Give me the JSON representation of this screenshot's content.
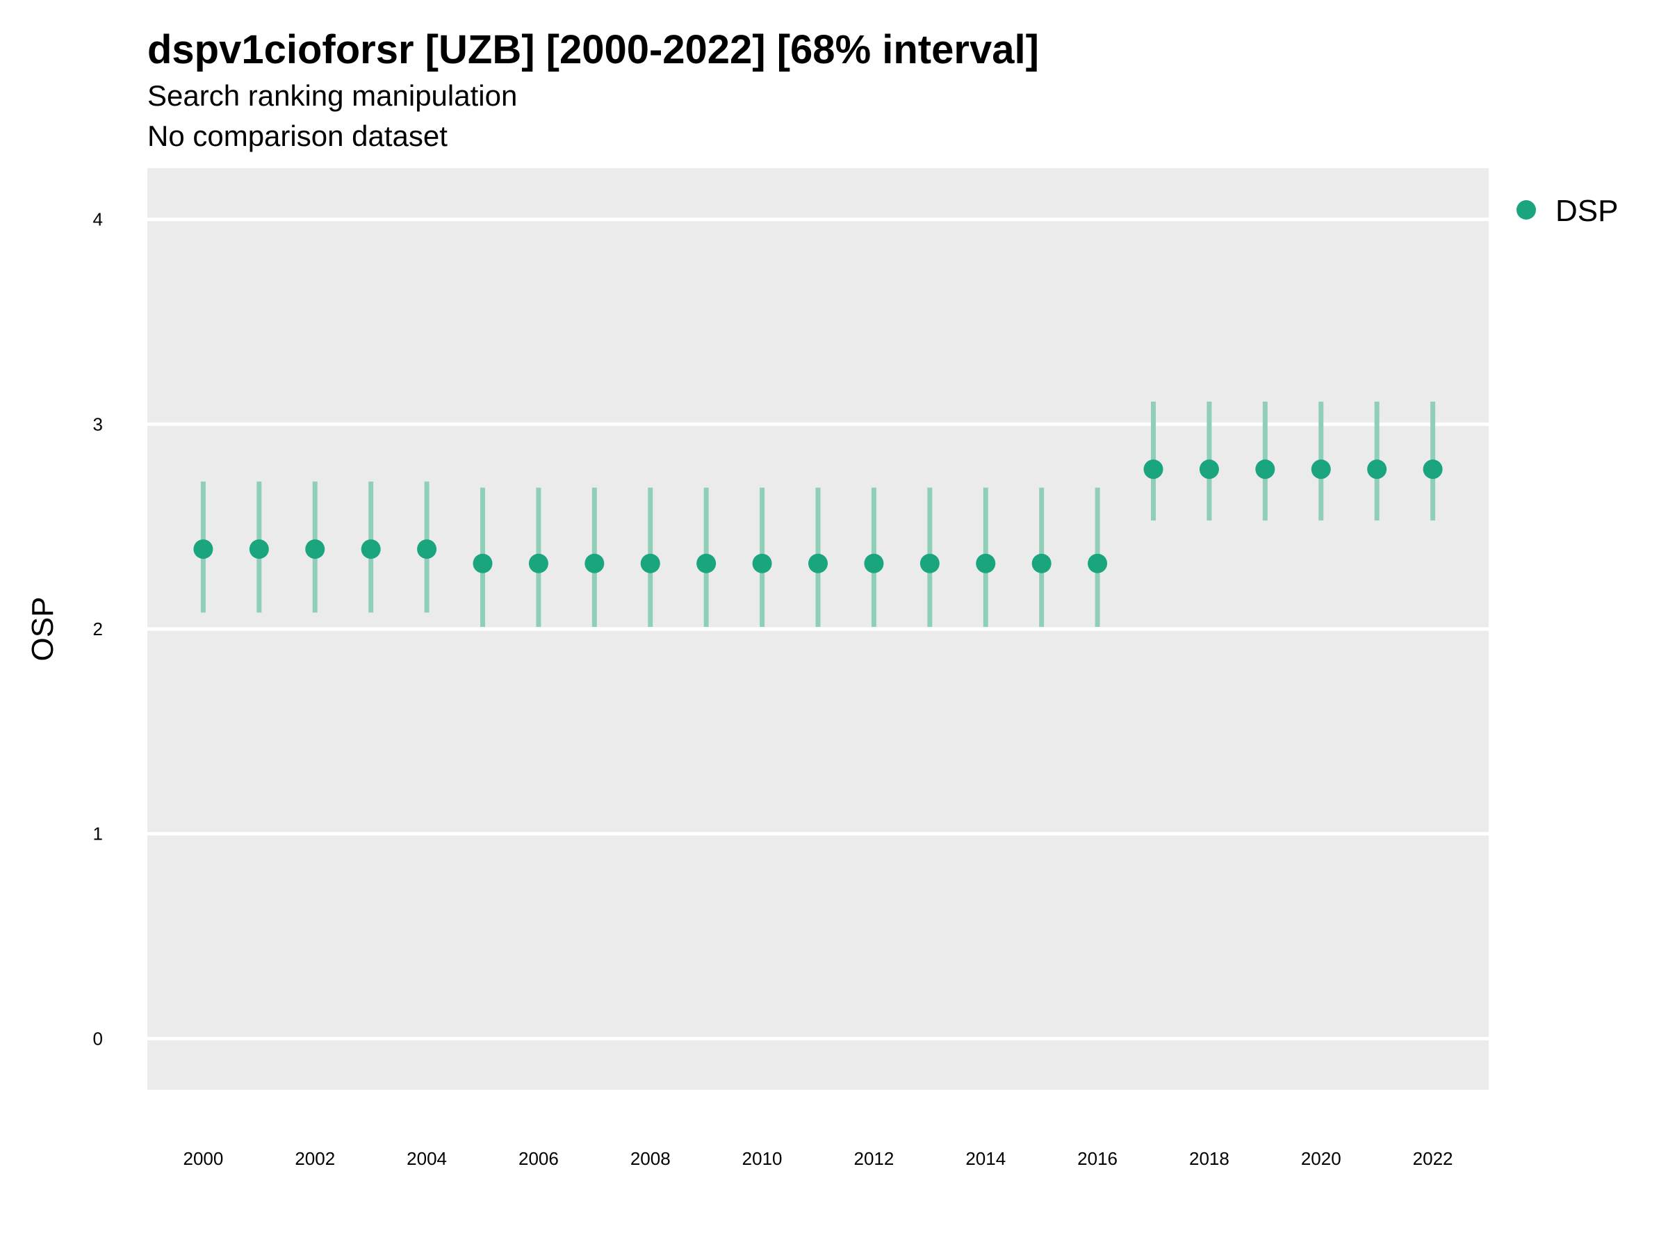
{
  "title": "dspv1cioforsr [UZB] [2000-2022] [68% interval]",
  "subtitle": "Search ranking manipulation",
  "caption": "No comparison dataset",
  "colors": {
    "point": "#1aa57f",
    "interval": "#8fcfb9",
    "panel": "#ebebeb",
    "grid": "#ffffff"
  },
  "chart_data": {
    "type": "scatter",
    "title": "dspv1cioforsr [UZB] [2000-2022] [68% interval]",
    "subtitle": "Search ranking manipulation",
    "xlabel": "",
    "ylabel": "OSP",
    "xlim": [
      1999,
      2023
    ],
    "ylim": [
      -0.25,
      4.25
    ],
    "x_ticks": [
      2000,
      2002,
      2004,
      2006,
      2008,
      2010,
      2012,
      2014,
      2016,
      2018,
      2020,
      2022
    ],
    "y_ticks": [
      0,
      1,
      2,
      3,
      4
    ],
    "grid": true,
    "legend_position": "top-right",
    "series": [
      {
        "name": "DSP",
        "x": [
          2000,
          2001,
          2002,
          2003,
          2004,
          2005,
          2006,
          2007,
          2008,
          2009,
          2010,
          2011,
          2012,
          2013,
          2014,
          2015,
          2016,
          2017,
          2018,
          2019,
          2020,
          2021,
          2022
        ],
        "y": [
          2.39,
          2.39,
          2.39,
          2.39,
          2.39,
          2.32,
          2.32,
          2.32,
          2.32,
          2.32,
          2.32,
          2.32,
          2.32,
          2.32,
          2.32,
          2.32,
          2.32,
          2.78,
          2.78,
          2.78,
          2.78,
          2.78,
          2.78
        ],
        "lower": [
          2.08,
          2.08,
          2.08,
          2.08,
          2.08,
          2.01,
          2.01,
          2.01,
          2.01,
          2.01,
          2.01,
          2.01,
          2.01,
          2.01,
          2.01,
          2.01,
          2.01,
          2.53,
          2.53,
          2.53,
          2.53,
          2.53,
          2.53
        ],
        "upper": [
          2.72,
          2.72,
          2.72,
          2.72,
          2.72,
          2.69,
          2.69,
          2.69,
          2.69,
          2.69,
          2.69,
          2.69,
          2.69,
          2.69,
          2.69,
          2.69,
          2.69,
          3.11,
          3.11,
          3.11,
          3.11,
          3.11,
          3.11
        ]
      }
    ]
  }
}
